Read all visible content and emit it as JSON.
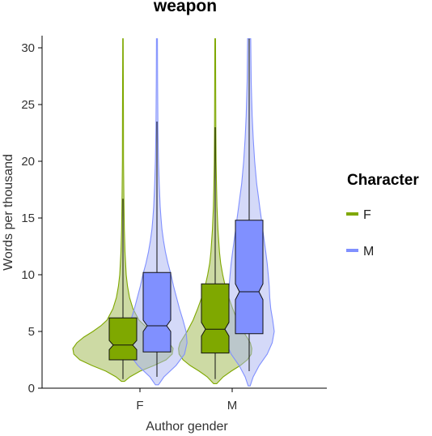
{
  "chart_data": {
    "type": "violin-box",
    "title": "weapon",
    "xlabel": "Author gender",
    "ylabel": "Words per thousand",
    "categories": [
      "F",
      "M"
    ],
    "ylim": [
      0,
      30.8
    ],
    "yticks": [
      0,
      5,
      10,
      15,
      20,
      25,
      30
    ],
    "legend": {
      "title": "Character",
      "position": "right",
      "entries": [
        {
          "label": "F",
          "color": "#7fa800"
        },
        {
          "label": "M",
          "color": "#8090ff"
        }
      ]
    },
    "series": [
      {
        "name": "F",
        "color": "#7fa800",
        "fill": "#9bb54a",
        "groups": [
          {
            "category": "F",
            "whisker_low": 0.8,
            "q1": 2.5,
            "median": 3.8,
            "q3": 6.2,
            "whisker_high": 16.7,
            "notch_low": 3.4,
            "notch_high": 4.2,
            "violin_min": 0.6,
            "violin_max": 30.8,
            "density": [
              [
                0.6,
                0.03
              ],
              [
                1.0,
                0.14
              ],
              [
                1.5,
                0.34
              ],
              [
                2.0,
                0.62
              ],
              [
                2.5,
                0.86
              ],
              [
                3.0,
                0.98
              ],
              [
                3.5,
                1.0
              ],
              [
                4.0,
                0.92
              ],
              [
                4.5,
                0.78
              ],
              [
                5.0,
                0.6
              ],
              [
                5.5,
                0.44
              ],
              [
                6.0,
                0.32
              ],
              [
                7.0,
                0.2
              ],
              [
                8.0,
                0.13
              ],
              [
                9.0,
                0.09
              ],
              [
                10.0,
                0.065
              ],
              [
                12.0,
                0.04
              ],
              [
                14.0,
                0.028
              ],
              [
                17.0,
                0.018
              ],
              [
                20.0,
                0.012
              ],
              [
                24.0,
                0.009
              ],
              [
                28.0,
                0.006
              ],
              [
                30.8,
                0.005
              ]
            ]
          },
          {
            "category": "M",
            "whisker_low": 0.8,
            "q1": 3.1,
            "median": 5.2,
            "q3": 9.2,
            "whisker_high": 23.0,
            "notch_low": 4.6,
            "notch_high": 5.8,
            "violin_min": 0.4,
            "violin_max": 30.8,
            "density": [
              [
                0.4,
                0.03
              ],
              [
                1.0,
                0.16
              ],
              [
                1.5,
                0.32
              ],
              [
                2.0,
                0.5
              ],
              [
                2.5,
                0.64
              ],
              [
                3.0,
                0.72
              ],
              [
                3.5,
                0.73
              ],
              [
                4.0,
                0.7
              ],
              [
                4.5,
                0.63
              ],
              [
                5.0,
                0.56
              ],
              [
                5.5,
                0.5
              ],
              [
                6.0,
                0.44
              ],
              [
                7.0,
                0.35
              ],
              [
                8.0,
                0.27
              ],
              [
                9.0,
                0.2
              ],
              [
                10.0,
                0.15
              ],
              [
                11.0,
                0.11
              ],
              [
                12.0,
                0.085
              ],
              [
                14.0,
                0.055
              ],
              [
                16.0,
                0.035
              ],
              [
                18.0,
                0.025
              ],
              [
                20.0,
                0.018
              ],
              [
                23.0,
                0.013
              ],
              [
                27.0,
                0.009
              ],
              [
                30.8,
                0.007
              ]
            ]
          }
        ]
      },
      {
        "name": "M",
        "color": "#8090ff",
        "fill": "#a9b3f2",
        "groups": [
          {
            "category": "F",
            "whisker_low": 1.0,
            "q1": 3.2,
            "median": 5.5,
            "q3": 10.2,
            "whisker_high": 23.5,
            "notch_low": 5.0,
            "notch_high": 6.0,
            "violin_min": 0.3,
            "violin_max": 30.8,
            "density": [
              [
                0.3,
                0.03
              ],
              [
                1.0,
                0.14
              ],
              [
                2.0,
                0.38
              ],
              [
                3.0,
                0.55
              ],
              [
                4.0,
                0.6
              ],
              [
                5.0,
                0.58
              ],
              [
                6.0,
                0.52
              ],
              [
                7.0,
                0.45
              ],
              [
                8.0,
                0.39
              ],
              [
                9.0,
                0.33
              ],
              [
                10.0,
                0.28
              ],
              [
                11.0,
                0.22
              ],
              [
                12.0,
                0.17
              ],
              [
                13.0,
                0.13
              ],
              [
                14.0,
                0.1
              ],
              [
                15.0,
                0.08
              ],
              [
                16.0,
                0.065
              ],
              [
                18.0,
                0.045
              ],
              [
                20.0,
                0.03
              ],
              [
                23.0,
                0.02
              ],
              [
                27.0,
                0.013
              ],
              [
                30.8,
                0.009
              ]
            ]
          },
          {
            "category": "M",
            "whisker_low": 1.5,
            "q1": 4.8,
            "median": 8.5,
            "q3": 14.8,
            "whisker_high": 30.8,
            "notch_low": 7.8,
            "notch_high": 9.2,
            "violin_min": 0.2,
            "violin_max": 30.8,
            "density": [
              [
                0.2,
                0.02
              ],
              [
                1.0,
                0.08
              ],
              [
                2.0,
                0.2
              ],
              [
                3.0,
                0.36
              ],
              [
                4.0,
                0.46
              ],
              [
                5.0,
                0.5
              ],
              [
                6.0,
                0.47
              ],
              [
                7.0,
                0.43
              ],
              [
                8.0,
                0.41
              ],
              [
                9.0,
                0.4
              ],
              [
                10.0,
                0.38
              ],
              [
                11.0,
                0.36
              ],
              [
                12.0,
                0.33
              ],
              [
                13.0,
                0.3
              ],
              [
                14.0,
                0.27
              ],
              [
                15.0,
                0.24
              ],
              [
                16.0,
                0.21
              ],
              [
                17.0,
                0.18
              ],
              [
                18.0,
                0.15
              ],
              [
                20.0,
                0.11
              ],
              [
                22.0,
                0.08
              ],
              [
                24.0,
                0.06
              ],
              [
                27.0,
                0.04
              ],
              [
                30.8,
                0.03
              ]
            ]
          }
        ]
      }
    ]
  }
}
